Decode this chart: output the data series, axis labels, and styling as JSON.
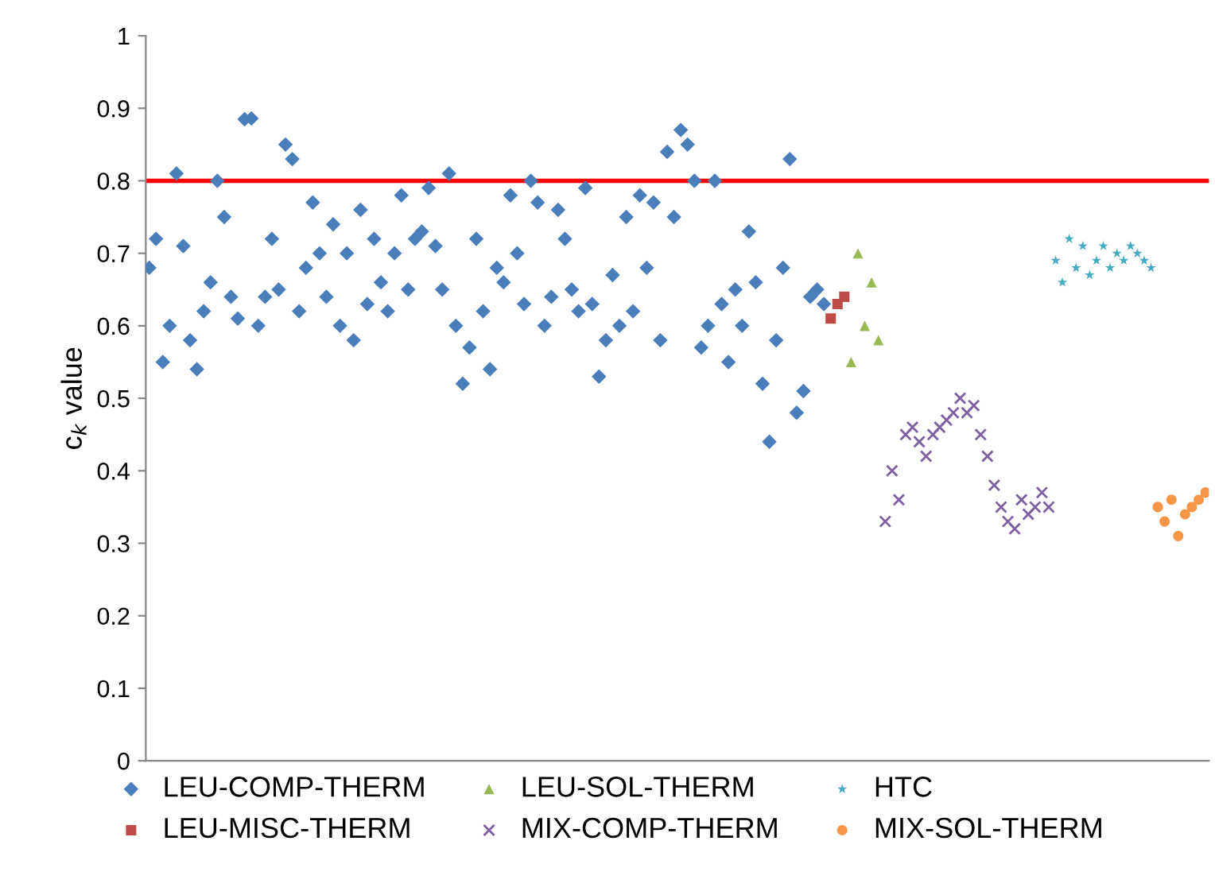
{
  "chart_data": {
    "type": "scatter",
    "ylabel": "c$_{k}$ value",
    "ylim": [
      0,
      1
    ],
    "yticks": [
      0,
      0.1,
      0.2,
      0.3,
      0.4,
      0.5,
      0.6,
      0.7,
      0.8,
      0.9,
      1
    ],
    "grid": false,
    "legend": "bottom",
    "categories": [
      null,
      null,
      null,
      null,
      null,
      null,
      null,
      null,
      null,
      null,
      null,
      null,
      null,
      null,
      null,
      null,
      null,
      null,
      null,
      null,
      null,
      null,
      null,
      null,
      null,
      null,
      null,
      null,
      null,
      null,
      null,
      null,
      null,
      null,
      null,
      null,
      null,
      null,
      null,
      null,
      null,
      null,
      null,
      null,
      null,
      null,
      null,
      null,
      null,
      null,
      null,
      null,
      null,
      null,
      null,
      null,
      null,
      null,
      null,
      null,
      null,
      null,
      null,
      null,
      null,
      null,
      null,
      null,
      null,
      null,
      null,
      null,
      null,
      null,
      null,
      null,
      null,
      null,
      null,
      null,
      null,
      null,
      null,
      null,
      null,
      null,
      null,
      null,
      null,
      null,
      null,
      null,
      null,
      null,
      null,
      null,
      null,
      null,
      null,
      null,
      null,
      null,
      null,
      null,
      null,
      null,
      null,
      null,
      null,
      null,
      null,
      null,
      null,
      null,
      null,
      null,
      null,
      null,
      null,
      null,
      null,
      null,
      null,
      null,
      null,
      null,
      null,
      null,
      null,
      null,
      null,
      null,
      null,
      null,
      null,
      null,
      null,
      null,
      null,
      null,
      null,
      null,
      null,
      null,
      null,
      null,
      null,
      null,
      null,
      null,
      null,
      null,
      null,
      null,
      null,
      null
    ],
    "ref_lines": [
      {
        "axis": "y",
        "value": 0.8,
        "color": "#ff0000",
        "line_style": "solid"
      }
    ],
    "series": [
      {
        "name": "LEU-COMP-THERM",
        "color": "#4a7ebb",
        "marker": "diamond",
        "values": [
          0.68,
          0.72,
          0.55,
          0.6,
          0.81,
          0.71,
          0.58,
          0.54,
          0.62,
          0.66,
          0.8,
          0.75,
          0.64,
          0.61,
          0.885,
          0.886,
          0.6,
          0.64,
          0.72,
          0.65,
          0.85,
          0.83,
          0.62,
          0.68,
          0.77,
          0.7,
          0.64,
          0.74,
          0.6,
          0.7,
          0.58,
          0.76,
          0.63,
          0.72,
          0.66,
          0.62,
          0.7,
          0.78,
          0.65,
          0.72,
          0.73,
          0.79,
          0.71,
          0.65,
          0.81,
          0.6,
          0.52,
          0.57,
          0.72,
          0.62,
          0.54,
          0.68,
          0.66,
          0.78,
          0.7,
          0.63,
          0.8,
          0.77,
          0.6,
          0.64,
          0.76,
          0.72,
          0.65,
          0.62,
          0.79,
          0.63,
          0.53,
          0.58,
          0.67,
          0.6,
          0.75,
          0.62,
          0.78,
          0.68,
          0.77,
          0.58,
          0.84,
          0.75,
          0.87,
          0.85,
          0.8,
          0.57,
          0.6,
          0.8,
          0.63,
          0.55,
          0.65,
          0.6,
          0.73,
          0.66,
          0.52,
          0.44,
          0.58,
          0.68,
          0.83,
          0.48,
          0.51,
          0.64,
          0.65,
          0.63,
          null,
          null,
          null,
          null,
          null,
          null,
          null,
          null,
          null,
          null,
          null,
          null,
          null,
          null,
          null,
          null,
          null,
          null,
          null,
          null,
          null,
          null,
          null,
          null,
          null,
          null,
          null,
          null,
          null,
          null,
          null,
          null,
          null,
          null,
          null,
          null,
          null,
          null,
          null,
          null,
          null,
          null,
          null,
          null,
          null,
          null,
          null,
          null,
          null,
          null,
          null,
          null,
          null,
          null,
          null,
          null
        ]
      },
      {
        "name": "LEU-MISC-THERM",
        "color": "#be4b48",
        "marker": "square",
        "values": [
          null,
          null,
          null,
          null,
          null,
          null,
          null,
          null,
          null,
          null,
          null,
          null,
          null,
          null,
          null,
          null,
          null,
          null,
          null,
          null,
          null,
          null,
          null,
          null,
          null,
          null,
          null,
          null,
          null,
          null,
          null,
          null,
          null,
          null,
          null,
          null,
          null,
          null,
          null,
          null,
          null,
          null,
          null,
          null,
          null,
          null,
          null,
          null,
          null,
          null,
          null,
          null,
          null,
          null,
          null,
          null,
          null,
          null,
          null,
          null,
          null,
          null,
          null,
          null,
          null,
          null,
          null,
          null,
          null,
          null,
          null,
          null,
          null,
          null,
          null,
          null,
          null,
          null,
          null,
          null,
          null,
          null,
          null,
          null,
          null,
          null,
          null,
          null,
          null,
          null,
          null,
          null,
          null,
          null,
          null,
          null,
          null,
          null,
          null,
          null,
          0.61,
          0.63,
          0.64,
          null,
          null,
          null,
          null,
          null,
          null,
          null,
          null,
          null,
          null,
          null,
          null,
          null,
          null,
          null,
          null,
          null,
          null,
          null,
          null,
          null,
          null,
          null,
          null,
          null,
          null,
          null,
          null,
          null,
          null,
          null,
          null,
          null,
          null,
          null,
          null,
          null,
          null,
          null,
          null,
          null,
          null,
          null,
          null,
          null,
          null,
          null,
          null,
          null,
          null,
          null,
          null,
          null
        ]
      },
      {
        "name": "LEU-SOL-THERM",
        "color": "#98b954",
        "marker": "triangle",
        "values": [
          null,
          null,
          null,
          null,
          null,
          null,
          null,
          null,
          null,
          null,
          null,
          null,
          null,
          null,
          null,
          null,
          null,
          null,
          null,
          null,
          null,
          null,
          null,
          null,
          null,
          null,
          null,
          null,
          null,
          null,
          null,
          null,
          null,
          null,
          null,
          null,
          null,
          null,
          null,
          null,
          null,
          null,
          null,
          null,
          null,
          null,
          null,
          null,
          null,
          null,
          null,
          null,
          null,
          null,
          null,
          null,
          null,
          null,
          null,
          null,
          null,
          null,
          null,
          null,
          null,
          null,
          null,
          null,
          null,
          null,
          null,
          null,
          null,
          null,
          null,
          null,
          null,
          null,
          null,
          null,
          null,
          null,
          null,
          null,
          null,
          null,
          null,
          null,
          null,
          null,
          null,
          null,
          null,
          null,
          null,
          null,
          null,
          null,
          null,
          null,
          null,
          null,
          null,
          0.55,
          0.7,
          0.6,
          0.66,
          0.58,
          null,
          null,
          null,
          null,
          null,
          null,
          null,
          null,
          null,
          null,
          null,
          null,
          null,
          null,
          null,
          null,
          null,
          null,
          null,
          null,
          null,
          null,
          null,
          null,
          null,
          null,
          null,
          null,
          null,
          null,
          null,
          null,
          null,
          null,
          null,
          null,
          null,
          null,
          null,
          null,
          null,
          null,
          null,
          null,
          null,
          null,
          null,
          null
        ]
      },
      {
        "name": "MIX-COMP-THERM",
        "color": "#7d60a0",
        "marker": "cross",
        "values": [
          null,
          null,
          null,
          null,
          null,
          null,
          null,
          null,
          null,
          null,
          null,
          null,
          null,
          null,
          null,
          null,
          null,
          null,
          null,
          null,
          null,
          null,
          null,
          null,
          null,
          null,
          null,
          null,
          null,
          null,
          null,
          null,
          null,
          null,
          null,
          null,
          null,
          null,
          null,
          null,
          null,
          null,
          null,
          null,
          null,
          null,
          null,
          null,
          null,
          null,
          null,
          null,
          null,
          null,
          null,
          null,
          null,
          null,
          null,
          null,
          null,
          null,
          null,
          null,
          null,
          null,
          null,
          null,
          null,
          null,
          null,
          null,
          null,
          null,
          null,
          null,
          null,
          null,
          null,
          null,
          null,
          null,
          null,
          null,
          null,
          null,
          null,
          null,
          null,
          null,
          null,
          null,
          null,
          null,
          null,
          null,
          null,
          null,
          null,
          null,
          null,
          null,
          null,
          null,
          null,
          null,
          null,
          null,
          0.33,
          0.4,
          0.36,
          0.45,
          0.46,
          0.44,
          0.42,
          0.45,
          0.46,
          0.47,
          0.48,
          0.5,
          0.48,
          0.49,
          0.45,
          0.42,
          0.38,
          0.35,
          0.33,
          0.32,
          0.36,
          0.34,
          0.35,
          0.37,
          0.35,
          null,
          null,
          null,
          null,
          null,
          null,
          null,
          null,
          null,
          null,
          null,
          null,
          null,
          null,
          null,
          null,
          null,
          null,
          null,
          null,
          null,
          null,
          null
        ]
      },
      {
        "name": "HTC",
        "color": "#46aac5",
        "marker": "star",
        "values": [
          null,
          null,
          null,
          null,
          null,
          null,
          null,
          null,
          null,
          null,
          null,
          null,
          null,
          null,
          null,
          null,
          null,
          null,
          null,
          null,
          null,
          null,
          null,
          null,
          null,
          null,
          null,
          null,
          null,
          null,
          null,
          null,
          null,
          null,
          null,
          null,
          null,
          null,
          null,
          null,
          null,
          null,
          null,
          null,
          null,
          null,
          null,
          null,
          null,
          null,
          null,
          null,
          null,
          null,
          null,
          null,
          null,
          null,
          null,
          null,
          null,
          null,
          null,
          null,
          null,
          null,
          null,
          null,
          null,
          null,
          null,
          null,
          null,
          null,
          null,
          null,
          null,
          null,
          null,
          null,
          null,
          null,
          null,
          null,
          null,
          null,
          null,
          null,
          null,
          null,
          null,
          null,
          null,
          null,
          null,
          null,
          null,
          null,
          null,
          null,
          null,
          null,
          null,
          null,
          null,
          null,
          null,
          null,
          null,
          null,
          null,
          null,
          null,
          null,
          null,
          null,
          null,
          null,
          null,
          null,
          null,
          null,
          null,
          null,
          null,
          null,
          null,
          null,
          null,
          null,
          null,
          null,
          null,
          0.69,
          0.66,
          0.72,
          0.68,
          0.71,
          0.67,
          0.69,
          0.71,
          0.68,
          0.7,
          0.69,
          0.71,
          0.7,
          0.69,
          0.68,
          null,
          null,
          null,
          null,
          null,
          null,
          null,
          null
        ]
      },
      {
        "name": "MIX-SOL-THERM",
        "color": "#f79646",
        "marker": "circle",
        "values": [
          null,
          null,
          null,
          null,
          null,
          null,
          null,
          null,
          null,
          null,
          null,
          null,
          null,
          null,
          null,
          null,
          null,
          null,
          null,
          null,
          null,
          null,
          null,
          null,
          null,
          null,
          null,
          null,
          null,
          null,
          null,
          null,
          null,
          null,
          null,
          null,
          null,
          null,
          null,
          null,
          null,
          null,
          null,
          null,
          null,
          null,
          null,
          null,
          null,
          null,
          null,
          null,
          null,
          null,
          null,
          null,
          null,
          null,
          null,
          null,
          null,
          null,
          null,
          null,
          null,
          null,
          null,
          null,
          null,
          null,
          null,
          null,
          null,
          null,
          null,
          null,
          null,
          null,
          null,
          null,
          null,
          null,
          null,
          null,
          null,
          null,
          null,
          null,
          null,
          null,
          null,
          null,
          null,
          null,
          null,
          null,
          null,
          null,
          null,
          null,
          null,
          null,
          null,
          null,
          null,
          null,
          null,
          null,
          null,
          null,
          null,
          null,
          null,
          null,
          null,
          null,
          null,
          null,
          null,
          null,
          null,
          null,
          null,
          null,
          null,
          null,
          null,
          null,
          null,
          null,
          null,
          null,
          null,
          null,
          null,
          null,
          null,
          null,
          null,
          null,
          null,
          null,
          null,
          null,
          null,
          null,
          null,
          null,
          0.35,
          0.33,
          0.36,
          0.31,
          0.34,
          0.35,
          0.36,
          0.37
        ]
      }
    ]
  }
}
